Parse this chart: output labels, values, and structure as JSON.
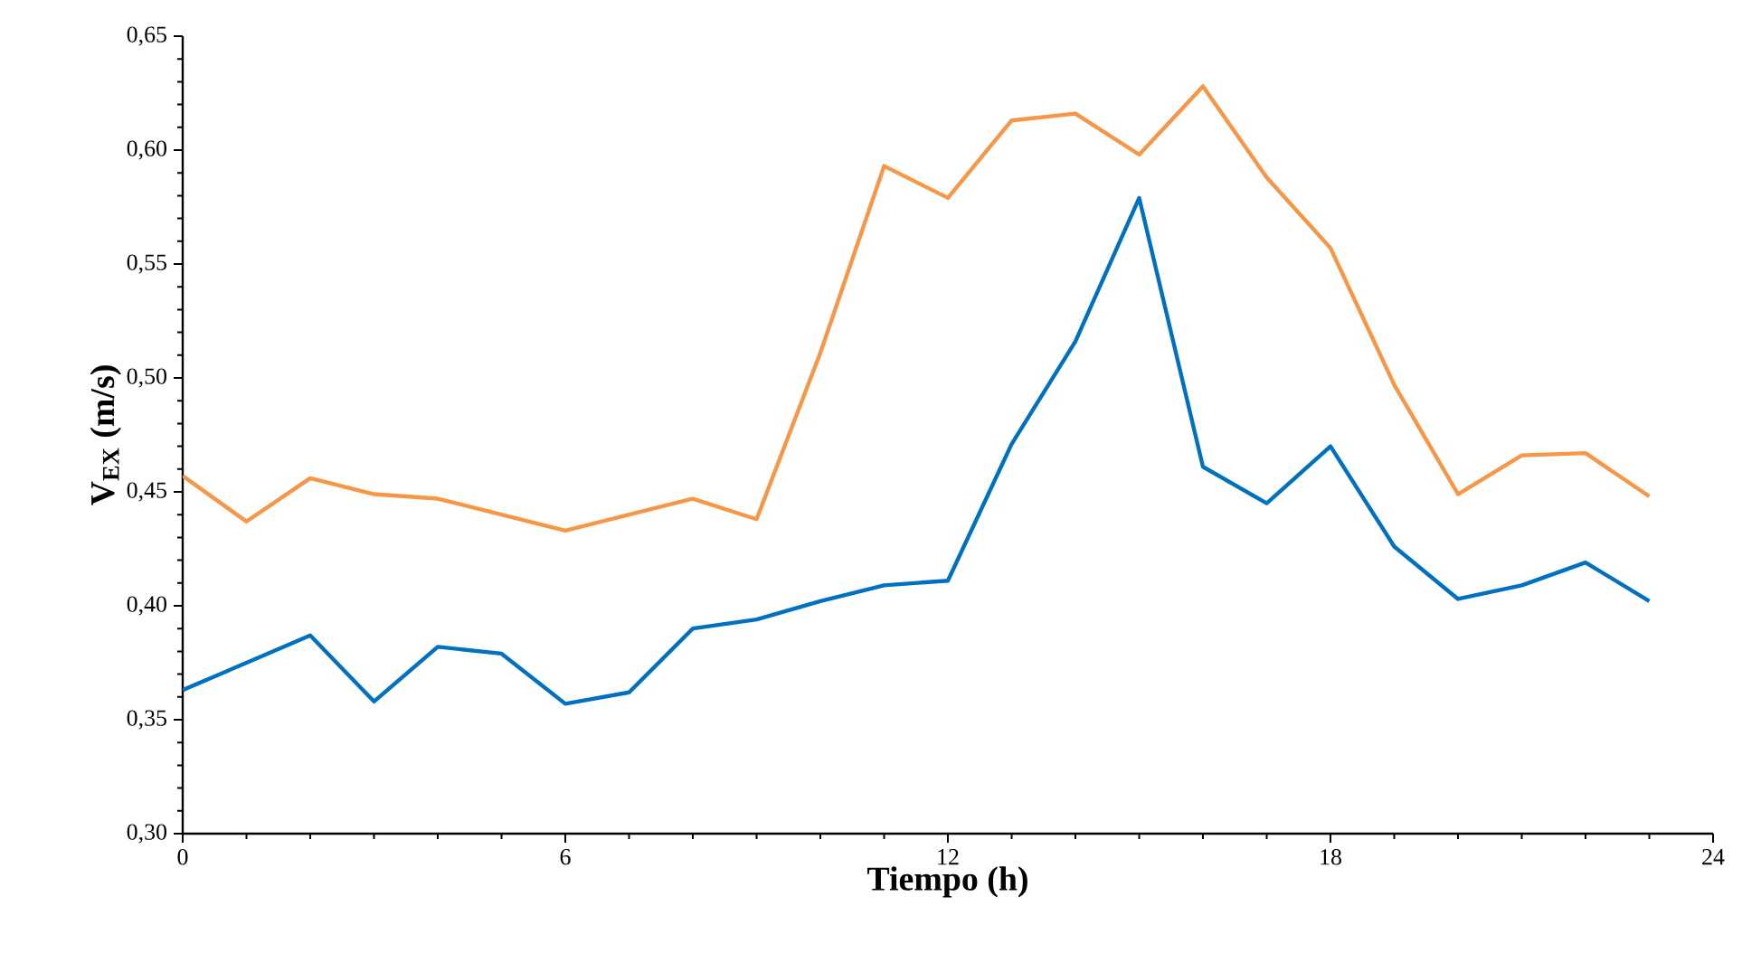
{
  "chart_data": {
    "type": "line",
    "xlabel": "Tiempo (h)",
    "ylabel": "**V$_{EX}$ (m/s)**",
    "x": [
      0,
      1,
      2,
      3,
      4,
      5,
      6,
      7,
      8,
      9,
      10,
      11,
      12,
      13,
      14,
      15,
      16,
      17,
      18,
      19,
      20,
      21,
      22,
      23
    ],
    "series": [
      {
        "color": "#f79646",
        "values": [
          0.457,
          0.437,
          0.456,
          0.449,
          0.447,
          0.44,
          0.433,
          0.44,
          0.447,
          0.438,
          0.511,
          0.593,
          0.579,
          0.613,
          0.616,
          0.598,
          0.628,
          0.588,
          0.557,
          0.497,
          0.449,
          0.466,
          0.467,
          0.448
        ]
      },
      {
        "color": "#0070c0",
        "values": [
          0.363,
          0.375,
          0.387,
          0.358,
          0.382,
          0.379,
          0.357,
          0.362,
          0.39,
          0.394,
          0.402,
          0.409,
          0.411,
          0.471,
          0.516,
          0.579,
          0.461,
          0.445,
          0.47,
          0.426,
          0.403,
          0.409,
          0.419,
          0.402
        ]
      }
    ],
    "xlim": [
      0,
      24
    ],
    "xticks": [
      0,
      6,
      12,
      18,
      24
    ],
    "ylim": [
      0.3,
      0.65
    ],
    "yticks": [
      {
        "value": 0.3,
        "label": "0,30"
      },
      {
        "value": 0.35,
        "label": "0,35"
      },
      {
        "value": 0.4,
        "label": "0,40"
      },
      {
        "value": 0.45,
        "label": "0,45"
      },
      {
        "value": 0.5,
        "label": "0,50"
      },
      {
        "value": 0.55,
        "label": "0,55"
      },
      {
        "value": 0.6,
        "label": "0,60"
      },
      {
        "value": 0.65,
        "label": "0,65"
      }
    ]
  }
}
